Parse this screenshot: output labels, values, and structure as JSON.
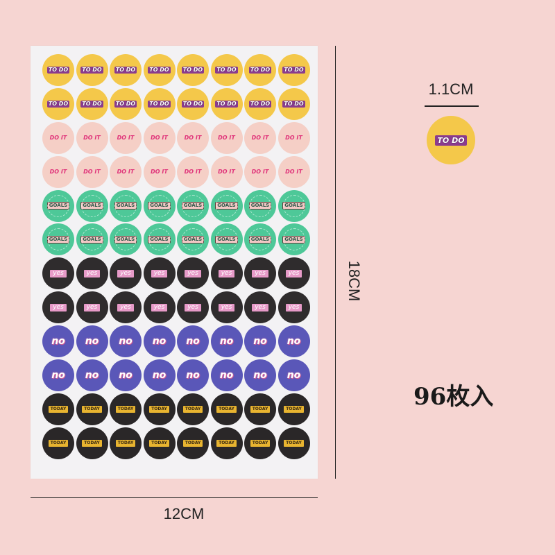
{
  "colors": {
    "background": "#f6d5d2",
    "sheet": "#f3f2f4",
    "todo": "#f4c84a",
    "doit": "#f5cfc6",
    "goals": "#4ec898",
    "yes": "#2f2c2d",
    "no": "#5a57b8",
    "today": "#2a2728"
  },
  "sticker_rows": [
    {
      "variant": "todo",
      "label": "TO DO"
    },
    {
      "variant": "todo",
      "label": "TO DO"
    },
    {
      "variant": "doit",
      "label": "DO IT"
    },
    {
      "variant": "doit",
      "label": "DO IT"
    },
    {
      "variant": "goals",
      "label": "GOALS"
    },
    {
      "variant": "goals",
      "label": "GOALS"
    },
    {
      "variant": "yes",
      "label": "yes"
    },
    {
      "variant": "yes",
      "label": "yes"
    },
    {
      "variant": "no",
      "label": "no"
    },
    {
      "variant": "no",
      "label": "no"
    },
    {
      "variant": "today",
      "label": "TODAY"
    },
    {
      "variant": "today",
      "label": "TODAY"
    }
  ],
  "stickers_per_row": 8,
  "dimensions": {
    "width": "12CM",
    "height": "18CM",
    "sticker_size": "1.1CM"
  },
  "sample": {
    "label": "TO DO"
  },
  "count": "96枚入"
}
